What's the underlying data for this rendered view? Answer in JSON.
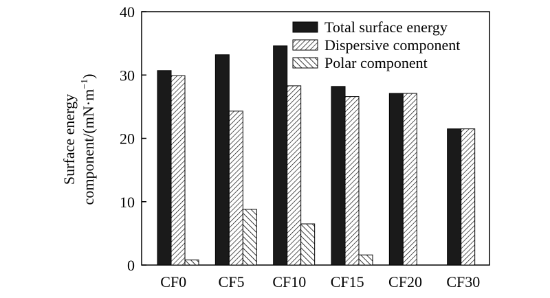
{
  "chart_data": {
    "type": "bar",
    "title": "",
    "xlabel": "",
    "ylabel_line1": "Surface energy",
    "ylabel_line2": "component/(mN·m",
    "ylabel_sup": "−1",
    "ylabel_end": ")",
    "ylim": [
      0,
      40
    ],
    "yticks": [
      0,
      10,
      20,
      30,
      40
    ],
    "categories": [
      "CF0",
      "CF5",
      "CF10",
      "CF15",
      "CF20",
      "CF30"
    ],
    "series": [
      {
        "name": "Total surface energy",
        "pattern": "solid",
        "values": [
          30.7,
          33.2,
          34.6,
          28.2,
          27.1,
          21.5
        ]
      },
      {
        "name": "Dispersive component",
        "pattern": "hatch-dense",
        "values": [
          29.9,
          24.3,
          28.3,
          26.6,
          27.1,
          21.5
        ]
      },
      {
        "name": "Polar component",
        "pattern": "hatch-sparse",
        "values": [
          0.8,
          8.8,
          6.5,
          1.6,
          0,
          0
        ]
      }
    ],
    "legend_position": "top-right",
    "colors": {
      "bar_fill": "#1a1a1a",
      "axis": "#000000",
      "background": "#ffffff"
    }
  }
}
